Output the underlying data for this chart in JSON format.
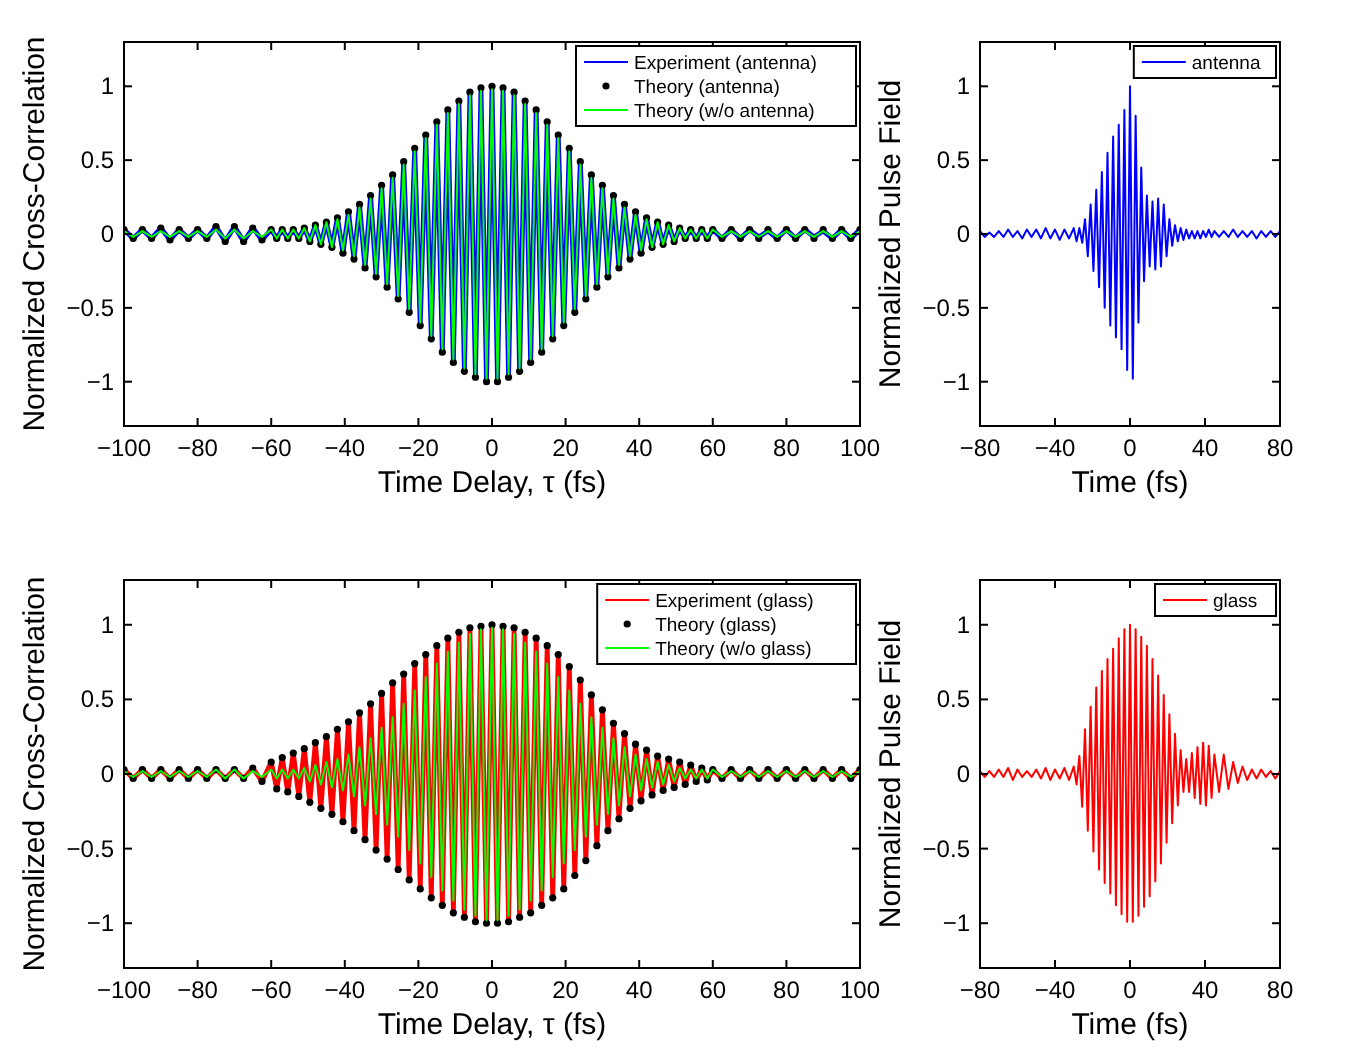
{
  "chart_data": [
    {
      "type": "line",
      "xlabel": "Time Delay, τ (fs)",
      "ylabel": "Normalized Cross-Correlation",
      "legend": "top right",
      "xlim": [
        -100,
        100
      ],
      "xticks": [
        -100,
        -80,
        -60,
        -40,
        -20,
        0,
        20,
        40,
        60,
        80,
        100
      ],
      "ylim": [
        -1.3,
        1.3
      ],
      "yticks": [
        -1,
        -0.5,
        0,
        0.5,
        1
      ],
      "x": [
        -100,
        -97.5,
        -95,
        -92.5,
        -90,
        -87.5,
        -85,
        -82.5,
        -80,
        -77.5,
        -75,
        -72.5,
        -70,
        -67.5,
        -65,
        -62.5,
        -60,
        -58.5,
        -57,
        -55.5,
        -54,
        -52.5,
        -51,
        -49.5,
        -48,
        -46.5,
        -45,
        -43.5,
        -42,
        -40.5,
        -39,
        -37.5,
        -36,
        -34.5,
        -33,
        -31.5,
        -30,
        -28.5,
        -27,
        -25.5,
        -24,
        -22.5,
        -21,
        -19.5,
        -18,
        -16.5,
        -15,
        -13.5,
        -12,
        -10.5,
        -9,
        -7.5,
        -6,
        -4.5,
        -3,
        -1.5,
        0,
        1.5,
        3,
        4.5,
        6,
        7.5,
        9,
        10.5,
        12,
        13.5,
        15,
        16.5,
        18,
        19.5,
        21,
        22.5,
        24,
        25.5,
        27,
        28.5,
        30,
        31.5,
        33,
        34.5,
        36,
        37.5,
        39,
        40.5,
        42,
        43.5,
        45,
        46.5,
        48,
        49.5,
        51,
        52.5,
        54,
        55.5,
        57,
        58.5,
        60,
        62.5,
        65,
        67.5,
        70,
        72.5,
        75,
        77.5,
        80,
        82.5,
        85,
        87.5,
        90,
        92.5,
        95,
        97.5,
        100
      ],
      "series": [
        {
          "name": "Experiment (antenna)",
          "color": "#0000ff",
          "values": [
            0.03,
            -0.03,
            0.03,
            -0.03,
            0.04,
            -0.04,
            0.03,
            -0.03,
            0.03,
            -0.03,
            0.05,
            -0.05,
            0.05,
            -0.05,
            0.04,
            -0.04,
            0.03,
            -0.03,
            0.03,
            -0.03,
            0.03,
            -0.03,
            0.04,
            -0.05,
            0.06,
            -0.07,
            0.08,
            -0.09,
            0.11,
            -0.13,
            0.15,
            -0.17,
            0.2,
            -0.23,
            0.26,
            -0.29,
            0.33,
            -0.36,
            0.4,
            -0.44,
            0.49,
            -0.53,
            0.58,
            -0.62,
            0.67,
            -0.71,
            0.76,
            -0.8,
            0.84,
            -0.87,
            0.9,
            -0.93,
            0.96,
            -0.97,
            0.99,
            -1,
            1,
            -1,
            0.99,
            -0.97,
            0.96,
            -0.93,
            0.9,
            -0.87,
            0.84,
            -0.8,
            0.76,
            -0.71,
            0.67,
            -0.62,
            0.58,
            -0.53,
            0.49,
            -0.44,
            0.4,
            -0.36,
            0.33,
            -0.29,
            0.26,
            -0.23,
            0.2,
            -0.17,
            0.15,
            -0.13,
            0.11,
            -0.09,
            0.08,
            -0.07,
            0.06,
            -0.05,
            0.04,
            -0.03,
            0.03,
            -0.03,
            0.03,
            -0.03,
            0.03,
            -0.03,
            0.03,
            -0.03,
            0.03,
            -0.02,
            0.02,
            -0.03,
            0.03,
            -0.03,
            0.03,
            -0.02,
            0.02,
            -0.03,
            0.03,
            -0.03,
            0.03
          ]
        },
        {
          "name": "Theory (antenna)",
          "type": "scatter",
          "marker": "circle",
          "color": "#000000",
          "values": [
            0.03,
            -0.03,
            0.03,
            -0.03,
            0.04,
            -0.04,
            0.03,
            -0.03,
            0.03,
            -0.03,
            0.05,
            -0.05,
            0.05,
            -0.05,
            0.04,
            -0.04,
            0.03,
            -0.03,
            0.03,
            -0.03,
            0.03,
            -0.03,
            0.04,
            -0.05,
            0.06,
            -0.07,
            0.08,
            -0.09,
            0.11,
            -0.13,
            0.15,
            -0.17,
            0.2,
            -0.23,
            0.26,
            -0.29,
            0.33,
            -0.36,
            0.4,
            -0.44,
            0.49,
            -0.53,
            0.58,
            -0.62,
            0.67,
            -0.71,
            0.76,
            -0.8,
            0.84,
            -0.87,
            0.9,
            -0.93,
            0.96,
            -0.97,
            0.99,
            -1,
            1,
            -1,
            0.99,
            -0.97,
            0.96,
            -0.93,
            0.9,
            -0.87,
            0.84,
            -0.8,
            0.76,
            -0.71,
            0.67,
            -0.62,
            0.58,
            -0.53,
            0.49,
            -0.44,
            0.4,
            -0.36,
            0.33,
            -0.29,
            0.26,
            -0.23,
            0.2,
            -0.17,
            0.15,
            -0.13,
            0.11,
            -0.09,
            0.08,
            -0.07,
            0.06,
            -0.05,
            0.04,
            -0.03,
            0.03,
            -0.03,
            0.03,
            -0.03,
            0.03,
            -0.03,
            0.03,
            -0.03,
            0.03,
            -0.03,
            0.03,
            -0.03,
            0.03,
            -0.03,
            0.03,
            -0.03,
            0.03,
            -0.03,
            0.03,
            -0.03,
            0.03
          ]
        },
        {
          "name": "Theory (w/o antenna)",
          "color": "#00ff00",
          "values": [
            0.02,
            -0.02,
            0.02,
            -0.02,
            0.02,
            -0.02,
            0.02,
            -0.02,
            0.02,
            -0.02,
            0.03,
            -0.03,
            0.03,
            -0.03,
            0.02,
            -0.02,
            0.03,
            -0.03,
            0.03,
            -0.03,
            0.03,
            -0.03,
            0.04,
            -0.05,
            0.06,
            -0.07,
            0.08,
            -0.09,
            0.1,
            -0.11,
            0.13,
            -0.15,
            0.18,
            -0.21,
            0.24,
            -0.27,
            0.31,
            -0.34,
            0.38,
            -0.42,
            0.47,
            -0.51,
            0.56,
            -0.6,
            0.65,
            -0.69,
            0.74,
            -0.78,
            0.82,
            -0.85,
            0.88,
            -0.91,
            0.94,
            -0.95,
            0.97,
            -0.98,
            0.98,
            -0.98,
            0.97,
            -0.95,
            0.94,
            -0.91,
            0.88,
            -0.85,
            0.82,
            -0.78,
            0.74,
            -0.69,
            0.65,
            -0.6,
            0.56,
            -0.51,
            0.47,
            -0.42,
            0.38,
            -0.34,
            0.31,
            -0.27,
            0.24,
            -0.21,
            0.18,
            -0.15,
            0.13,
            -0.11,
            0.1,
            -0.09,
            0.08,
            -0.07,
            0.06,
            -0.05,
            0.04,
            -0.03,
            0.03,
            -0.03,
            0.03,
            -0.03,
            0.03,
            -0.02,
            0.02,
            -0.02,
            0.02,
            -0.02,
            0.02,
            -0.02,
            0.02,
            -0.02,
            0.02,
            -0.02,
            0.02,
            -0.02,
            0.02,
            -0.02,
            0.02
          ]
        }
      ]
    },
    {
      "type": "line",
      "xlabel": "Time (fs)",
      "ylabel": "Normalized Pulse Field",
      "legend": "top right",
      "xlim": [
        -80,
        80
      ],
      "xticks": [
        -80,
        -40,
        0,
        40,
        80
      ],
      "ylim": [
        -1.3,
        1.3
      ],
      "yticks": [
        -1,
        -0.5,
        0,
        0.5,
        1
      ],
      "x": [
        -80,
        -77.5,
        -75,
        -72.5,
        -70,
        -67.5,
        -65,
        -62.5,
        -60,
        -57.5,
        -55,
        -52.5,
        -50,
        -47.5,
        -45,
        -42.5,
        -40,
        -37.5,
        -35,
        -32.5,
        -30,
        -28.5,
        -27,
        -25.5,
        -24,
        -22.5,
        -21,
        -19.5,
        -18,
        -16.5,
        -15,
        -13.5,
        -12,
        -10.5,
        -9,
        -7.5,
        -6,
        -4.5,
        -3,
        -1.5,
        0,
        1.5,
        3,
        4.5,
        6,
        7.5,
        9,
        10.5,
        12,
        13.5,
        15,
        16.5,
        18,
        19.5,
        21,
        22.5,
        24,
        25.5,
        27,
        28.5,
        30,
        31.5,
        33,
        34.5,
        36,
        37.5,
        39,
        40.5,
        42,
        43.5,
        45,
        47.5,
        50,
        52.5,
        55,
        57.5,
        60,
        62.5,
        65,
        67.5,
        70,
        72.5,
        75,
        77.5,
        80
      ],
      "series": [
        {
          "name": "antenna",
          "color": "#0000ff",
          "values": [
            0.02,
            -0.02,
            0.01,
            -0.02,
            0.02,
            -0.02,
            0.03,
            -0.02,
            0.02,
            -0.03,
            0.03,
            -0.02,
            0.03,
            -0.03,
            0.04,
            -0.03,
            0.03,
            -0.04,
            0.03,
            -0.03,
            0.04,
            -0.05,
            0.04,
            -0.06,
            0.1,
            -0.15,
            0.2,
            -0.25,
            0.3,
            -0.36,
            0.42,
            -0.5,
            0.55,
            -0.62,
            0.66,
            -0.7,
            0.74,
            -0.78,
            0.84,
            -0.92,
            1,
            -0.98,
            0.8,
            -0.6,
            0.45,
            -0.32,
            0.26,
            -0.22,
            0.22,
            -0.24,
            0.24,
            -0.22,
            0.2,
            -0.15,
            0.1,
            -0.08,
            0.06,
            -0.05,
            0.04,
            -0.04,
            0.03,
            -0.03,
            0.02,
            -0.03,
            0.02,
            -0.03,
            0.02,
            -0.02,
            0.03,
            -0.02,
            0.02,
            -0.02,
            0.02,
            -0.02,
            0.03,
            -0.02,
            0.02,
            -0.02,
            0.02,
            -0.03,
            0.02,
            -0.02,
            0.02,
            -0.02,
            0.02
          ]
        }
      ]
    },
    {
      "type": "line",
      "xlabel": "Time Delay, τ (fs)",
      "ylabel": "Normalized Cross-Correlation",
      "legend": "top right",
      "xlim": [
        -100,
        100
      ],
      "xticks": [
        -100,
        -80,
        -60,
        -40,
        -20,
        0,
        20,
        40,
        60,
        80,
        100
      ],
      "ylim": [
        -1.3,
        1.3
      ],
      "yticks": [
        -1,
        -0.5,
        0,
        0.5,
        1
      ],
      "x": [
        -100,
        -97.5,
        -95,
        -92.5,
        -90,
        -87.5,
        -85,
        -82.5,
        -80,
        -77.5,
        -75,
        -72.5,
        -70,
        -67.5,
        -65,
        -62.5,
        -60,
        -58.5,
        -57,
        -55.5,
        -54,
        -52.5,
        -51,
        -49.5,
        -48,
        -46.5,
        -45,
        -43.5,
        -42,
        -40.5,
        -39,
        -37.5,
        -36,
        -34.5,
        -33,
        -31.5,
        -30,
        -28.5,
        -27,
        -25.5,
        -24,
        -22.5,
        -21,
        -19.5,
        -18,
        -16.5,
        -15,
        -13.5,
        -12,
        -10.5,
        -9,
        -7.5,
        -6,
        -4.5,
        -3,
        -1.5,
        0,
        1.5,
        3,
        4.5,
        6,
        7.5,
        9,
        10.5,
        12,
        13.5,
        15,
        16.5,
        18,
        19.5,
        21,
        22.5,
        24,
        25.5,
        27,
        28.5,
        30,
        31.5,
        33,
        34.5,
        36,
        37.5,
        39,
        40.5,
        42,
        43.5,
        45,
        46.5,
        48,
        49.5,
        51,
        52.5,
        54,
        55.5,
        57,
        58.5,
        60,
        62.5,
        65,
        67.5,
        70,
        72.5,
        75,
        77.5,
        80,
        82.5,
        85,
        87.5,
        90,
        92.5,
        95,
        97.5,
        100
      ],
      "series": [
        {
          "name": "Experiment (glass)",
          "color": "#ff0000",
          "values": [
            0.03,
            -0.03,
            0.03,
            -0.03,
            0.03,
            -0.03,
            0.03,
            -0.03,
            0.03,
            -0.03,
            0.03,
            -0.03,
            0.03,
            -0.03,
            0.04,
            -0.05,
            0.08,
            -0.1,
            0.11,
            -0.12,
            0.14,
            -0.15,
            0.17,
            -0.19,
            0.21,
            -0.23,
            0.25,
            -0.27,
            0.3,
            -0.32,
            0.35,
            -0.38,
            0.41,
            -0.44,
            0.47,
            -0.51,
            0.54,
            -0.57,
            0.61,
            -0.64,
            0.67,
            -0.71,
            0.74,
            -0.77,
            0.8,
            -0.83,
            0.86,
            -0.88,
            0.91,
            -0.93,
            0.95,
            -0.96,
            0.98,
            -0.99,
            0.99,
            -1,
            1,
            -1,
            0.99,
            -0.99,
            0.98,
            -0.96,
            0.95,
            -0.93,
            0.91,
            -0.88,
            0.86,
            -0.83,
            0.8,
            -0.77,
            0.72,
            -0.68,
            0.63,
            -0.58,
            0.53,
            -0.48,
            0.43,
            -0.38,
            0.34,
            -0.3,
            0.27,
            -0.23,
            0.2,
            -0.18,
            0.16,
            -0.14,
            0.12,
            -0.11,
            0.1,
            -0.09,
            0.08,
            -0.07,
            0.06,
            -0.05,
            0.04,
            -0.04,
            0.03,
            -0.03,
            0.03,
            -0.03,
            0.03,
            -0.03,
            0.03,
            -0.03,
            0.03,
            -0.03,
            0.03,
            -0.03,
            0.03,
            -0.03,
            0.03,
            -0.03,
            0.03
          ]
        },
        {
          "name": "Theory (glass)",
          "type": "scatter",
          "marker": "circle",
          "color": "#000000",
          "values": [
            0.03,
            -0.03,
            0.03,
            -0.03,
            0.03,
            -0.03,
            0.03,
            -0.03,
            0.03,
            -0.03,
            0.03,
            -0.03,
            0.03,
            -0.03,
            0.04,
            -0.05,
            0.08,
            -0.1,
            0.11,
            -0.12,
            0.14,
            -0.15,
            0.17,
            -0.19,
            0.21,
            -0.23,
            0.25,
            -0.27,
            0.3,
            -0.32,
            0.35,
            -0.38,
            0.41,
            -0.44,
            0.47,
            -0.51,
            0.54,
            -0.57,
            0.61,
            -0.64,
            0.67,
            -0.71,
            0.74,
            -0.77,
            0.8,
            -0.83,
            0.86,
            -0.88,
            0.91,
            -0.93,
            0.95,
            -0.96,
            0.98,
            -0.99,
            0.99,
            -1,
            1,
            -1,
            0.99,
            -0.99,
            0.98,
            -0.96,
            0.95,
            -0.93,
            0.91,
            -0.88,
            0.86,
            -0.83,
            0.8,
            -0.77,
            0.72,
            -0.68,
            0.63,
            -0.58,
            0.53,
            -0.48,
            0.43,
            -0.38,
            0.34,
            -0.3,
            0.27,
            -0.23,
            0.2,
            -0.18,
            0.16,
            -0.14,
            0.12,
            -0.11,
            0.1,
            -0.09,
            0.08,
            -0.07,
            0.06,
            -0.05,
            0.04,
            -0.04,
            0.03,
            -0.03,
            0.03,
            -0.03,
            0.03,
            -0.03,
            0.03,
            -0.03,
            0.03,
            -0.03,
            0.03,
            -0.03,
            0.03,
            -0.03,
            0.03,
            -0.03,
            0.03
          ]
        },
        {
          "name": "Theory (w/o glass)",
          "color": "#00ff00",
          "values": [
            0.02,
            -0.02,
            0.02,
            -0.02,
            0.02,
            -0.02,
            0.02,
            -0.02,
            0.02,
            -0.02,
            0.03,
            -0.03,
            0.03,
            -0.03,
            0.02,
            -0.02,
            0.03,
            -0.03,
            0.03,
            -0.03,
            0.03,
            -0.03,
            0.04,
            -0.05,
            0.06,
            -0.07,
            0.08,
            -0.09,
            0.1,
            -0.11,
            0.13,
            -0.15,
            0.18,
            -0.21,
            0.24,
            -0.27,
            0.31,
            -0.34,
            0.38,
            -0.42,
            0.47,
            -0.51,
            0.56,
            -0.6,
            0.65,
            -0.69,
            0.74,
            -0.78,
            0.82,
            -0.85,
            0.88,
            -0.91,
            0.94,
            -0.95,
            0.97,
            -0.98,
            0.98,
            -0.98,
            0.97,
            -0.95,
            0.94,
            -0.91,
            0.88,
            -0.85,
            0.82,
            -0.78,
            0.74,
            -0.69,
            0.65,
            -0.6,
            0.56,
            -0.51,
            0.47,
            -0.42,
            0.38,
            -0.34,
            0.31,
            -0.27,
            0.24,
            -0.21,
            0.18,
            -0.15,
            0.13,
            -0.11,
            0.1,
            -0.09,
            0.08,
            -0.07,
            0.06,
            -0.05,
            0.04,
            -0.03,
            0.03,
            -0.03,
            0.03,
            -0.03,
            0.03,
            -0.02,
            0.02,
            -0.02,
            0.02,
            -0.02,
            0.02,
            -0.02,
            0.02,
            -0.02,
            0.02,
            -0.02,
            0.02,
            -0.02,
            0.02,
            -0.02,
            0.02
          ]
        }
      ]
    },
    {
      "type": "line",
      "xlabel": "Time (fs)",
      "ylabel": "Normalized Pulse Field",
      "legend": "top right",
      "xlim": [
        -80,
        80
      ],
      "xticks": [
        -80,
        -40,
        0,
        40,
        80
      ],
      "ylim": [
        -1.3,
        1.3
      ],
      "yticks": [
        -1,
        -0.5,
        0,
        0.5,
        1
      ],
      "x": [
        -80,
        -77.5,
        -75,
        -72.5,
        -70,
        -67.5,
        -65,
        -62.5,
        -60,
        -57.5,
        -55,
        -52.5,
        -50,
        -47.5,
        -45,
        -42.5,
        -40,
        -37.5,
        -35,
        -32.5,
        -30,
        -28.5,
        -27,
        -25.5,
        -24,
        -22.5,
        -21,
        -19.5,
        -18,
        -16.5,
        -15,
        -13.5,
        -12,
        -10.5,
        -9,
        -7.5,
        -6,
        -4.5,
        -3,
        -1.5,
        0,
        1.5,
        3,
        4.5,
        6,
        7.5,
        9,
        10.5,
        12,
        13.5,
        15,
        16.5,
        18,
        19.5,
        21,
        22.5,
        24,
        25.5,
        27,
        28.5,
        30,
        31.5,
        33,
        34.5,
        36,
        37.5,
        39,
        40.5,
        42,
        43.5,
        45,
        47.5,
        50,
        52.5,
        55,
        57.5,
        60,
        62.5,
        65,
        67.5,
        70,
        72.5,
        75,
        77.5,
        80
      ],
      "series": [
        {
          "name": "glass",
          "color": "#ff0000",
          "values": [
            0.02,
            -0.02,
            0.02,
            -0.02,
            0.03,
            -0.02,
            0.04,
            -0.04,
            0.03,
            -0.02,
            0.02,
            -0.02,
            0.03,
            -0.03,
            0.04,
            -0.04,
            0.03,
            -0.03,
            0.04,
            -0.04,
            0.05,
            -0.07,
            0.12,
            -0.22,
            0.3,
            -0.38,
            0.45,
            -0.52,
            0.58,
            -0.64,
            0.69,
            -0.73,
            0.77,
            -0.8,
            0.84,
            -0.88,
            0.91,
            -0.94,
            0.97,
            -0.99,
            1,
            -0.99,
            0.97,
            -0.95,
            0.92,
            -0.89,
            0.86,
            -0.82,
            0.77,
            -0.72,
            0.66,
            -0.6,
            0.53,
            -0.46,
            0.4,
            -0.33,
            0.27,
            -0.21,
            0.16,
            -0.12,
            0.1,
            -0.12,
            0.14,
            -0.16,
            0.18,
            -0.2,
            0.21,
            -0.21,
            0.19,
            -0.16,
            0.13,
            -0.12,
            0.13,
            -0.1,
            0.08,
            -0.06,
            0.05,
            -0.04,
            0.03,
            -0.03,
            0.03,
            -0.02,
            0.02,
            -0.03,
            0.02
          ]
        }
      ]
    }
  ]
}
